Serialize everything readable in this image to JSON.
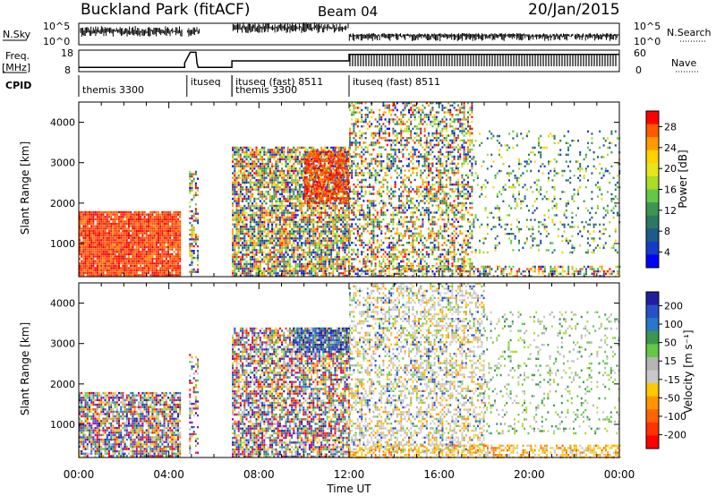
{
  "header": {
    "site": "Buckland Park (fitACF)",
    "beam": "Beam 04",
    "date": "20/Jan/2015"
  },
  "top_panels": {
    "nsky_label": "N.Sky",
    "nsky_ticks": [
      "10^5",
      "10^0"
    ],
    "nsearch_label": "N.Search",
    "nsearch_ticks": [
      "10^5",
      "10^0"
    ],
    "freq_label": "Freq.",
    "freq_unit": "[MHz]",
    "freq_ticks": [
      "18",
      "8"
    ],
    "nave_label": "Nave",
    "nave_ticks": [
      "60",
      "0"
    ],
    "cpid_label": "CPID",
    "cpid_segments": [
      {
        "start_hr": 0.0,
        "label": "themis 3300"
      },
      {
        "start_hr": 4.8,
        "label": "ituseq"
      },
      {
        "start_hr": 6.8,
        "label": "ituseq (fast) 8511"
      },
      {
        "start_hr": 6.8,
        "label": "themis 3300"
      },
      {
        "start_hr": 12.0,
        "label": "ituseq (fast) 8511"
      }
    ],
    "freq_series": [
      [
        0,
        10
      ],
      [
        4.7,
        10
      ],
      [
        4.7,
        12
      ],
      [
        4.95,
        17
      ],
      [
        5.2,
        17
      ],
      [
        5.25,
        12
      ],
      [
        5.3,
        10
      ],
      [
        6.8,
        10
      ],
      [
        6.8,
        13
      ],
      [
        12.0,
        13
      ],
      [
        12.0,
        16
      ],
      [
        24,
        16
      ]
    ],
    "nave_series": [
      [
        0,
        30
      ],
      [
        4.8,
        30
      ],
      [
        6.8,
        30
      ],
      [
        12,
        50
      ],
      [
        24,
        50
      ]
    ]
  },
  "chart_data": [
    {
      "type": "heatmap",
      "name": "power-panel",
      "ylabel": "Slant Range [km]",
      "xlabel": "Time UT",
      "x_ticks": [
        "00:00",
        "04:00",
        "08:00",
        "12:00",
        "16:00",
        "20:00",
        "00:00"
      ],
      "x_range_hr": [
        0,
        24
      ],
      "y_ticks": [
        1000,
        2000,
        3000,
        4000
      ],
      "ylim": [
        180,
        4500
      ],
      "colorbar": {
        "label": "Power [dB]",
        "ticks": [
          "28",
          "24",
          "20",
          "16",
          "12",
          "8",
          "4"
        ],
        "colors": [
          "#ff0000",
          "#ff5a00",
          "#ff9a00",
          "#ffd200",
          "#e6e61e",
          "#aadc28",
          "#64c846",
          "#3c9650",
          "#2d7864",
          "#1e5a8c",
          "#143cc8",
          "#0000ff"
        ]
      },
      "regions": [
        {
          "t0": 0.0,
          "t1": 4.5,
          "r0": 200,
          "r1": 1800,
          "palette": "hot",
          "density": 0.95
        },
        {
          "t0": 4.9,
          "t1": 5.3,
          "r0": 300,
          "r1": 2800,
          "palette": "mixed",
          "density": 0.5
        },
        {
          "t0": 6.8,
          "t1": 12.0,
          "r0": 200,
          "r1": 3400,
          "palette": "mixed",
          "density": 0.75
        },
        {
          "t0": 10.0,
          "t1": 12.0,
          "r0": 2000,
          "r1": 3300,
          "palette": "hot",
          "density": 0.7
        },
        {
          "t0": 12.0,
          "t1": 17.5,
          "r0": 300,
          "r1": 4500,
          "palette": "mixed",
          "density": 0.45
        },
        {
          "t0": 17.5,
          "t1": 24.0,
          "r0": 800,
          "r1": 3800,
          "palette": "cool",
          "density": 0.15
        },
        {
          "t0": 12.0,
          "t1": 24.0,
          "r0": 200,
          "r1": 450,
          "palette": "mixed",
          "density": 0.5
        }
      ]
    },
    {
      "type": "heatmap",
      "name": "velocity-panel",
      "ylabel": "Slant Range [km]",
      "xlabel": "Time UT",
      "x_ticks": [
        "00:00",
        "04:00",
        "08:00",
        "12:00",
        "16:00",
        "20:00",
        "00:00"
      ],
      "x_range_hr": [
        0,
        24
      ],
      "y_ticks": [
        1000,
        2000,
        3000,
        4000
      ],
      "ylim": [
        180,
        4500
      ],
      "colorbar": {
        "label": "Velocity [m s⁻¹]",
        "ticks": [
          "200",
          "100",
          "50",
          "15",
          "-15",
          "-50",
          "-100",
          "-200"
        ],
        "colors": [
          "#1e1ea0",
          "#2850c8",
          "#2878c8",
          "#3c9650",
          "#64c846",
          "#b4b4b4",
          "#c8c8c8",
          "#ffc800",
          "#ff9600",
          "#ff6400",
          "#ff3200",
          "#ff0000"
        ]
      },
      "regions": [
        {
          "t0": 0.0,
          "t1": 4.5,
          "r0": 200,
          "r1": 1800,
          "palette": "vmix",
          "density": 0.8
        },
        {
          "t0": 4.9,
          "t1": 5.3,
          "r0": 300,
          "r1": 2800,
          "palette": "vmix",
          "density": 0.4
        },
        {
          "t0": 6.8,
          "t1": 12.0,
          "r0": 200,
          "r1": 3400,
          "palette": "vmix",
          "density": 0.7
        },
        {
          "t0": 9.5,
          "t1": 12.0,
          "r0": 2800,
          "r1": 3400,
          "palette": "vblue",
          "density": 0.8
        },
        {
          "t0": 12.0,
          "t1": 18.0,
          "r0": 300,
          "r1": 4500,
          "palette": "vgrey",
          "density": 0.45
        },
        {
          "t0": 18.0,
          "t1": 24.0,
          "r0": 800,
          "r1": 3800,
          "palette": "vgreen",
          "density": 0.15
        },
        {
          "t0": 12.0,
          "t1": 24.0,
          "r0": 200,
          "r1": 500,
          "palette": "vorange",
          "density": 0.5
        }
      ]
    }
  ]
}
